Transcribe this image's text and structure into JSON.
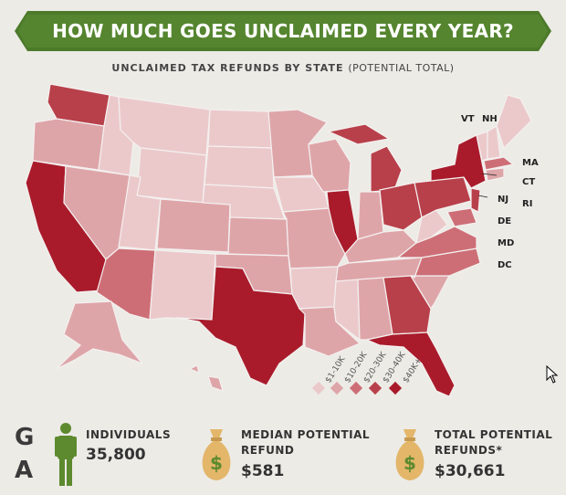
{
  "title": "HOW MUCH GOES UNCLAIMED EVERY YEAR?",
  "subtitle_bold": "UNCLAIMED TAX REFUNDS BY STATE",
  "subtitle_normal": "(POTENTIAL TOTAL)",
  "state_labels": [
    "VT",
    "NH",
    "MA",
    "CT",
    "RI",
    "NJ",
    "DE",
    "MD",
    "DC"
  ],
  "legend": [
    {
      "label": "$1-10K",
      "color": "#ebc9cb"
    },
    {
      "label": "$10-20K",
      "color": "#dea5a9"
    },
    {
      "label": "$20-30K",
      "color": "#cd6e76"
    },
    {
      "label": "$30-40K",
      "color": "#b8404a"
    },
    {
      "label": "$40K+",
      "color": "#a91b2b"
    }
  ],
  "state": {
    "letters": [
      "G",
      "A"
    ],
    "individuals_label": "INDIVIDUALS",
    "individuals_value": "35,800",
    "median_label_1": "MEDIAN POTENTIAL",
    "median_label_2": "REFUND",
    "median_value": "$581",
    "total_label_1": "TOTAL POTENTIAL",
    "total_label_2": "REFUNDS*",
    "total_value": "$30,661"
  },
  "colors": {
    "banner": "#4c7a2a",
    "person": "#5d8a2e",
    "moneybag": "#e3b66a"
  }
}
